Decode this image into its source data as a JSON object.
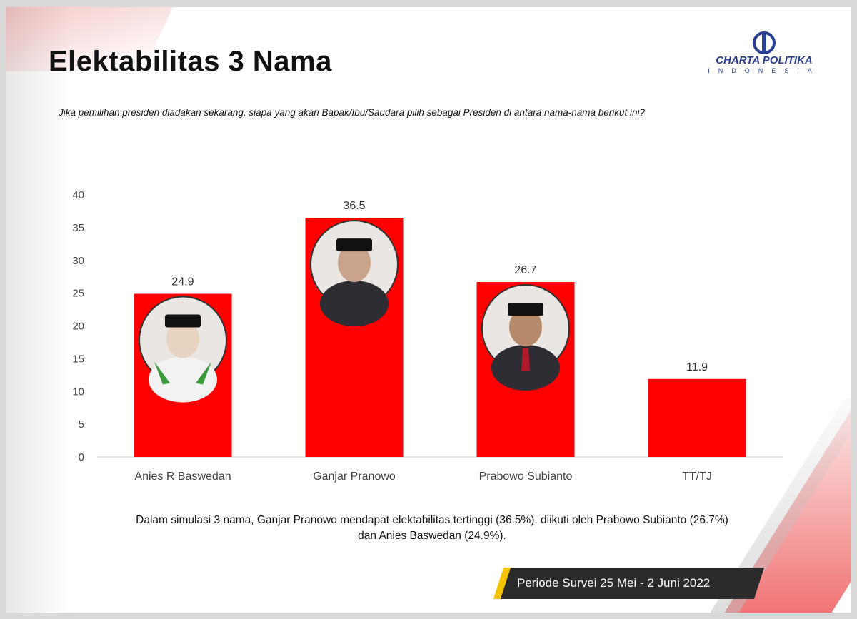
{
  "title": "Elektabilitas 3 Nama",
  "logo": {
    "name": "CHARTA POLITIKA",
    "sub": "INDONESIA"
  },
  "question": "Jika pemilihan presiden diadakan sekarang, siapa yang akan Bapak/Ibu/Saudara pilih sebagai Presiden di antara nama-nama berikut ini?",
  "summary_line1": "Dalam simulasi 3 nama, Ganjar Pranowo mendapat elektabilitas tertinggi (36.5%), diikuti oleh Prabowo Subianto (26.7%)",
  "summary_line2": "dan Anies Baswedan (24.9%).",
  "period": "Periode Survei 25 Mei - 2 Juni 2022",
  "colors": {
    "bar": "#ff0000",
    "accent": "#f5c400",
    "logo": "#2a3f8f"
  },
  "chart_data": {
    "type": "bar",
    "title": "",
    "xlabel": "",
    "ylabel": "",
    "categories": [
      "Anies R Baswedan",
      "Ganjar Pranowo",
      "Prabowo Subianto",
      "TT/TJ"
    ],
    "values": [
      24.9,
      36.5,
      26.7,
      11.9
    ],
    "data_labels": [
      "24.9",
      "36.5",
      "26.7",
      "11.9"
    ],
    "photos": [
      true,
      true,
      true,
      false
    ],
    "ylim": [
      0,
      40
    ],
    "yticks": [
      0,
      5,
      10,
      15,
      20,
      25,
      30,
      35,
      40
    ],
    "grid": false,
    "legend": "none"
  }
}
